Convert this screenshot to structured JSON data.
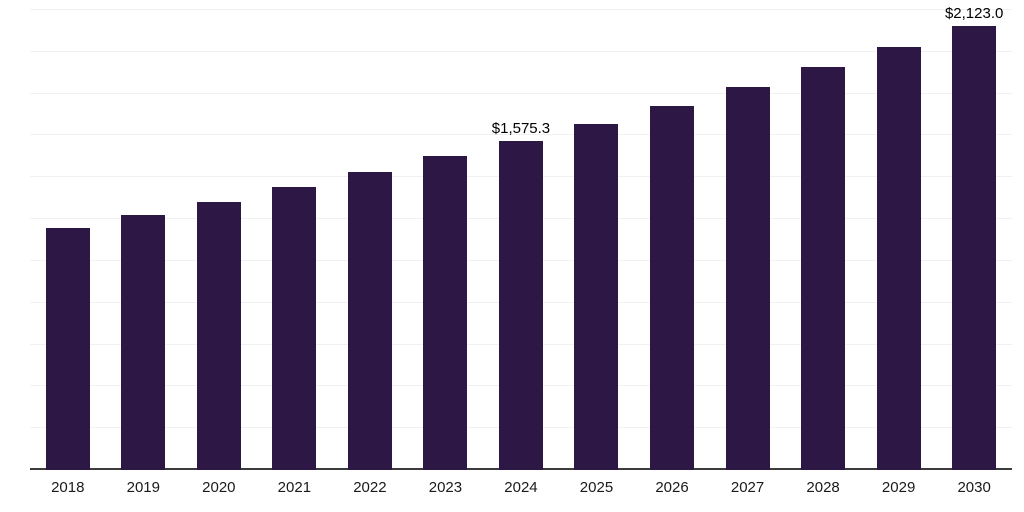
{
  "chart_data": {
    "type": "bar",
    "title": "",
    "xlabel": "",
    "ylabel": "",
    "categories": [
      "2018",
      "2019",
      "2020",
      "2021",
      "2022",
      "2023",
      "2024",
      "2025",
      "2026",
      "2027",
      "2028",
      "2029",
      "2030"
    ],
    "values": [
      1156,
      1222,
      1284,
      1352,
      1424,
      1500,
      1575.3,
      1656,
      1740,
      1830,
      1926,
      2025,
      2123.0
    ],
    "data_labels": [
      "",
      "",
      "",
      "",
      "",
      "",
      "$1,575.3",
      "",
      "",
      "",
      "",
      "",
      "$2,123.0"
    ],
    "ylim": [
      0,
      2200
    ],
    "gridline_step": 200,
    "grid": "horizontal",
    "legend": "none",
    "colors": {
      "bar": "#2d1745",
      "gridline": "#f0f0f0",
      "axis_line": "#3c3c3c",
      "tick_label": "#1a1a1a",
      "data_label": "#000000",
      "background": "#ffffff"
    }
  }
}
